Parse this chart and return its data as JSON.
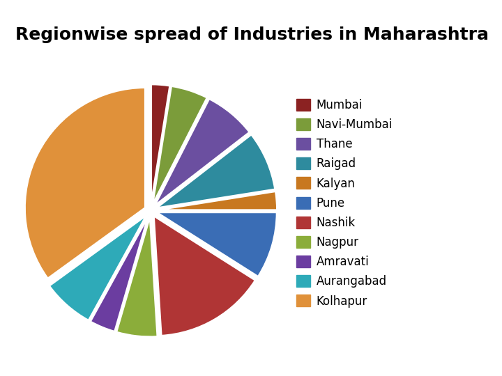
{
  "title": "Regionwise spread of Industries in Maharashtra",
  "labels": [
    "Mumbai",
    "Navi-Mumbai",
    "Thane",
    "Raigad",
    "Kalyan",
    "Pune",
    "Nashik",
    "Nagpur",
    "Amravati",
    "Aurangabad",
    "Kolhapur"
  ],
  "values": [
    2.5,
    5,
    7,
    8,
    2.5,
    9,
    15,
    5.5,
    3.5,
    7,
    35
  ],
  "colors": [
    "#8B2222",
    "#7B9C3A",
    "#6B4FA0",
    "#2E8B9E",
    "#C87820",
    "#3A6DB5",
    "#B03535",
    "#8BAD3A",
    "#6B3DA0",
    "#2EAAB8",
    "#E0913A"
  ],
  "explode": [
    0.05,
    0.05,
    0.05,
    0.05,
    0.05,
    0.05,
    0.05,
    0.05,
    0.05,
    0.05,
    0.05
  ],
  "startangle": 90,
  "title_fontsize": 18,
  "legend_fontsize": 12
}
